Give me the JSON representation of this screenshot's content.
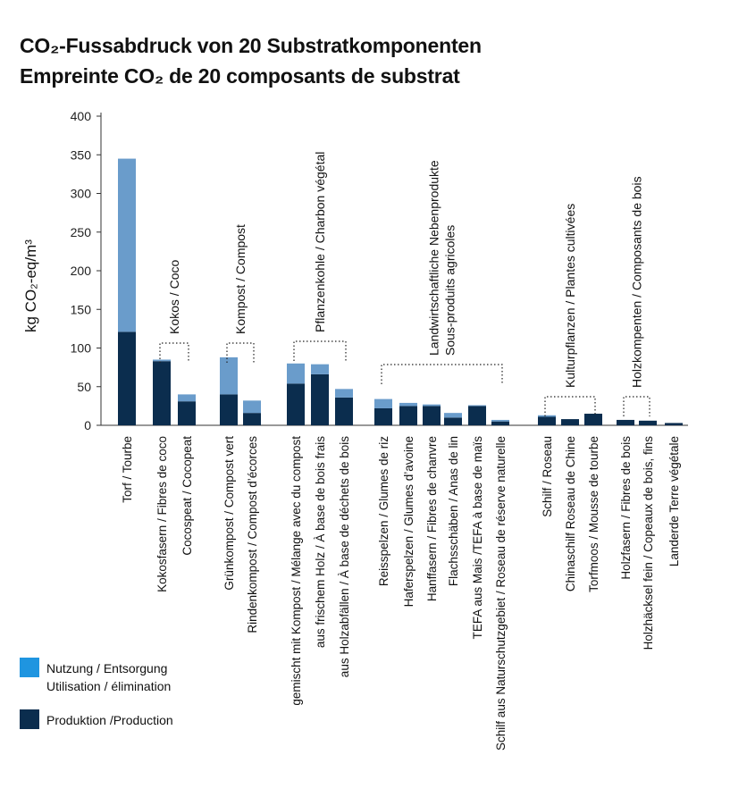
{
  "title_line1": "CO₂-Fussabdruck von 20 Substratkomponenten",
  "title_line2": "Empreinte CO₂ de 20 composants de substrat",
  "colors": {
    "usage": "#6a9ccb",
    "production": "#0b2d4e",
    "legend_usage": "#1f95e0",
    "axis": "#333333"
  },
  "legend": {
    "usage_line1": "Nutzung / Entsorgung",
    "usage_line2": "Utilisation / élimination",
    "production": "Produktion /Production"
  },
  "chart_data": {
    "type": "bar",
    "stacked": true,
    "ylabel": "kg CO₂-eq/m³",
    "ylim": [
      0,
      400
    ],
    "yticks": [
      0,
      50,
      100,
      150,
      200,
      250,
      300,
      350,
      400
    ],
    "categories": [
      "Torf / Tourbe",
      "Kokosfasern / Fibres de coco",
      "Cocospeat / Cocopeat",
      "Grünkompost / Compost vert",
      "Rindenkompost / Compost d’écorces",
      "gemischt mit Kompost / Mélange avec du compost",
      "aus frischem Holz / À base de bois frais",
      "aus Holzabfällen / À base de déchets de bois",
      "Reisspelzen / Glumes de riz",
      "Haferspelzen / Glumes d’avoine",
      "Hanffasern / Fibres de chanvre",
      "Flachsschäben / Anas de lin",
      "TEFA aus Mais /TEFA à base de maïs",
      "Schilf aus Naturschutzgebiet / Roseau de réserve naturelle",
      "Schilf / Roseau",
      "Chinaschilf   Roseau de Chine",
      "Torfmoos / Mousse de tourbe",
      "Holzfasern / Fibres de bois",
      "Holzhäcksel fein / Copeaux de bois, fins",
      "Landerde Terre végétale"
    ],
    "series": [
      {
        "name": "Produktion /Production",
        "values": [
          121,
          83,
          31,
          40,
          16,
          54,
          66,
          36,
          22,
          25,
          25,
          10,
          25,
          5,
          11,
          8,
          15,
          7,
          6,
          3
        ]
      },
      {
        "name": "Nutzung / Entsorgung",
        "values": [
          224,
          2,
          9,
          48,
          16,
          26,
          13,
          11,
          12,
          4,
          2,
          6,
          1,
          2,
          2,
          0,
          0,
          0,
          0,
          0
        ]
      }
    ],
    "groups": [
      {
        "label_lines": [
          "Kokos / Coco"
        ],
        "from": 1,
        "to": 2
      },
      {
        "label_lines": [
          "Kompost / Compost"
        ],
        "from": 3,
        "to": 4
      },
      {
        "label_lines": [
          "Pflanzenkohle / Charbon végétal"
        ],
        "from": 5,
        "to": 7
      },
      {
        "label_lines": [
          "Landwirtschaftliche Nebenprodukte",
          "Sous-produits agricoles"
        ],
        "from": 8,
        "to": 13
      },
      {
        "label_lines": [
          "Kulturpflanzen / Plantes cultivées"
        ],
        "from": 14,
        "to": 16
      },
      {
        "label_lines": [
          "Holzkompenten / Composants de bois"
        ],
        "from": 17,
        "to": 18
      }
    ]
  }
}
